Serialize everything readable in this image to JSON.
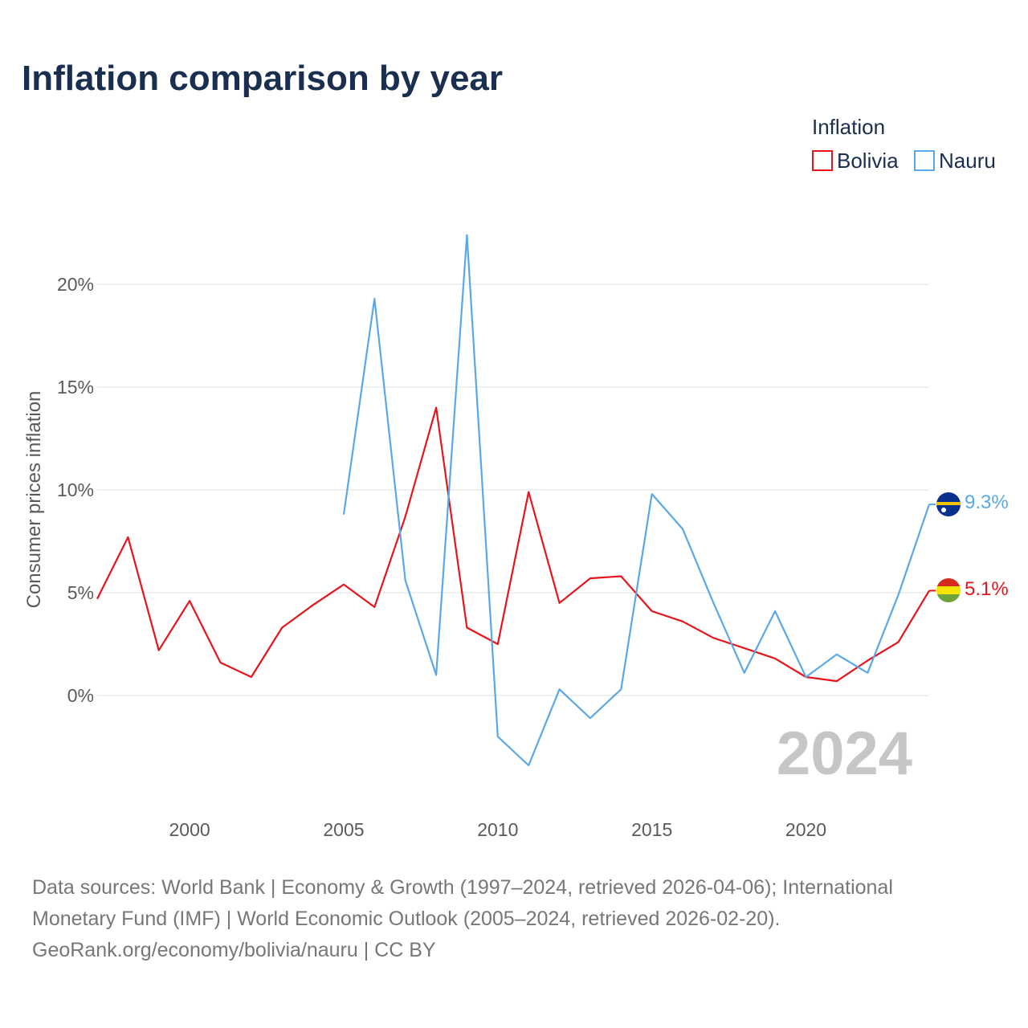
{
  "chart_data": {
    "type": "line",
    "title": "Inflation comparison by year",
    "legend_title": "Inflation",
    "legend_position": "top-right",
    "ylabel": "Consumer prices inflation",
    "xlabel": "",
    "xlim": [
      1997,
      2024
    ],
    "ylim": [
      -5,
      25
    ],
    "x_ticks": [
      2000,
      2005,
      2010,
      2015,
      2020
    ],
    "x_tick_labels": [
      "2000",
      "2005",
      "2010",
      "2015",
      "2020"
    ],
    "y_ticks": [
      0,
      5,
      10,
      15,
      20
    ],
    "y_tick_labels": [
      "0%",
      "5%",
      "10%",
      "15%",
      "20%"
    ],
    "grid": true,
    "year_label": "2024",
    "series": [
      {
        "name": "Bolivia",
        "color": "#e8141b",
        "flag": "bolivia-flag",
        "end_label": "5.1%",
        "x": [
          1997,
          1998,
          1999,
          2000,
          2001,
          2002,
          2003,
          2004,
          2005,
          2006,
          2007,
          2008,
          2009,
          2010,
          2011,
          2012,
          2013,
          2014,
          2015,
          2016,
          2017,
          2018,
          2019,
          2020,
          2021,
          2022,
          2023,
          2024
        ],
        "values": [
          4.7,
          7.7,
          2.2,
          4.6,
          1.6,
          0.9,
          3.3,
          4.4,
          5.4,
          4.3,
          8.7,
          14.0,
          3.3,
          2.5,
          9.9,
          4.5,
          5.7,
          5.8,
          4.1,
          3.6,
          2.8,
          2.3,
          1.8,
          0.9,
          0.7,
          1.7,
          2.6,
          5.1
        ]
      },
      {
        "name": "Nauru",
        "color": "#5aa8e8",
        "flag": "nauru-flag",
        "end_label": "9.3%",
        "x": [
          2005,
          2006,
          2007,
          2008,
          2009,
          2010,
          2011,
          2012,
          2013,
          2014,
          2015,
          2016,
          2017,
          2018,
          2019,
          2020,
          2021,
          2022,
          2023,
          2024
        ],
        "values": [
          8.8,
          19.3,
          5.6,
          1.0,
          22.4,
          -2.0,
          -3.4,
          0.3,
          -1.1,
          0.3,
          9.8,
          8.1,
          4.5,
          1.1,
          4.1,
          0.9,
          2.0,
          1.1,
          4.9,
          9.3
        ]
      }
    ]
  },
  "footer": {
    "line1": "Data sources: World Bank | Economy & Growth (1997–2024, retrieved 2026-04-06); International",
    "line2": "Monetary Fund (IMF) | World Economic Outlook (2005–2024, retrieved 2026-02-20).",
    "line3": "GeoRank.org/economy/bolivia/nauru | CC BY"
  }
}
